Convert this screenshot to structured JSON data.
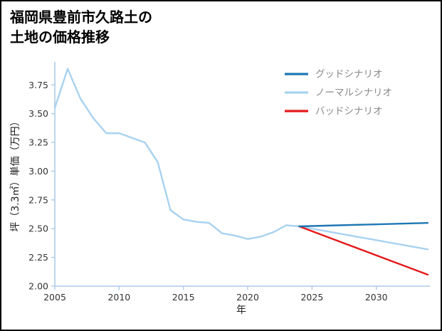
{
  "page": {
    "title_line1": "福岡県豊前市久路土の",
    "title_line2": "土地の価格推移"
  },
  "chart_data": {
    "type": "line",
    "title": "福岡県豊前市久路土の土地の価格推移",
    "xlabel": "年",
    "ylabel": "坪（3.3㎡）単価（万円）",
    "xlim": [
      2005,
      2034
    ],
    "ylim": [
      2.0,
      3.95
    ],
    "xticks": [
      2005,
      2010,
      2015,
      2020,
      2025,
      2030
    ],
    "yticks": [
      2.0,
      2.25,
      2.5,
      2.75,
      3.0,
      3.25,
      3.5,
      3.75
    ],
    "grid": false,
    "legend": {
      "position": "top-right",
      "text_color": "#8a8a8a"
    },
    "colors": {
      "axis": "#aecbe8",
      "tick_label": "#333333",
      "axis_title": "#222222"
    },
    "draw_order": [
      "normal",
      "bad",
      "good"
    ],
    "series": [
      {
        "key": "good",
        "name": "グッドシナリオ",
        "color": "#1f77b4",
        "x": [
          2024,
          2034
        ],
        "values": [
          2.52,
          2.55
        ]
      },
      {
        "key": "normal",
        "name": "ノーマルシナリオ",
        "color": "#a8d2f0",
        "x": [
          2005,
          2006,
          2007,
          2008,
          2009,
          2010,
          2011,
          2012,
          2013,
          2014,
          2015,
          2016,
          2017,
          2018,
          2019,
          2020,
          2021,
          2022,
          2023,
          2024,
          2034
        ],
        "values": [
          3.55,
          3.89,
          3.63,
          3.46,
          3.33,
          3.33,
          3.29,
          3.25,
          3.08,
          2.66,
          2.58,
          2.56,
          2.55,
          2.46,
          2.44,
          2.41,
          2.43,
          2.47,
          2.53,
          2.52,
          2.32
        ]
      },
      {
        "key": "bad",
        "name": "バッドシナリオ",
        "color": "#e41a1c",
        "x": [
          2024,
          2034
        ],
        "values": [
          2.52,
          2.1
        ]
      }
    ]
  }
}
